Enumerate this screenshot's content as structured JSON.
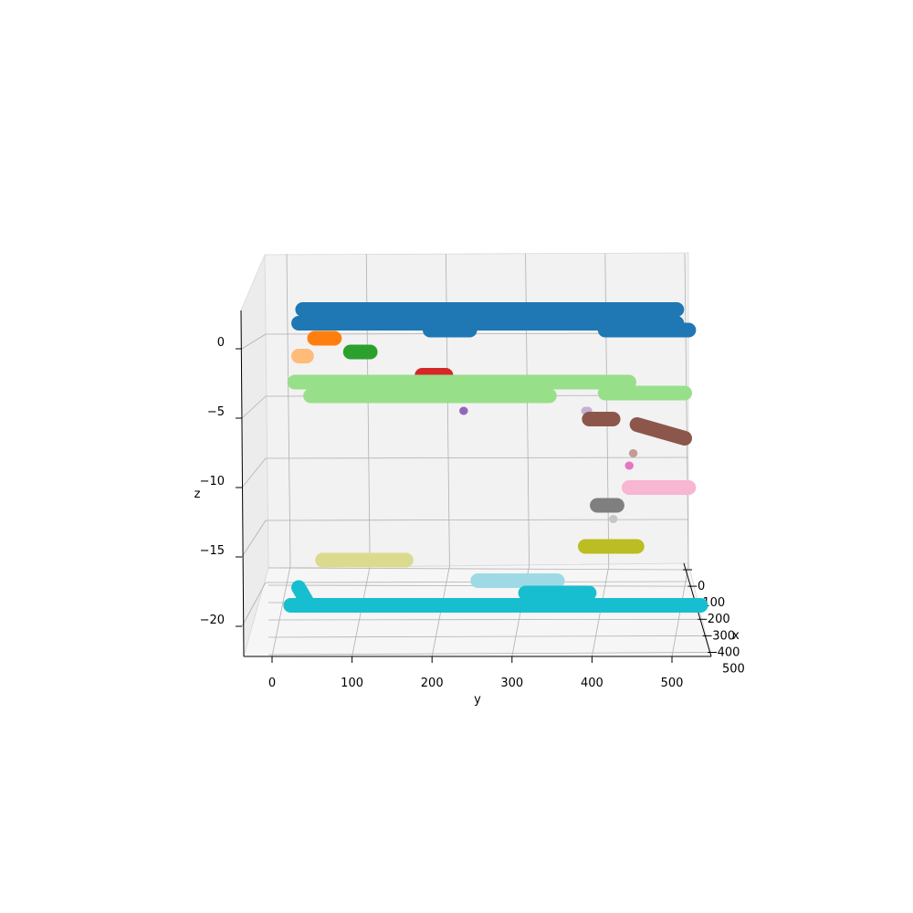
{
  "chart_data": {
    "type": "scatter3d",
    "title": "",
    "xlabel": "x",
    "ylabel": "y",
    "zlabel": "z",
    "x_ticks": [
      "0",
      "100",
      "200",
      "300",
      "400",
      "500"
    ],
    "y_ticks": [
      "0",
      "100",
      "200",
      "300",
      "400",
      "500"
    ],
    "z_ticks": [
      "0",
      "−5",
      "−10",
      "−15",
      "−20"
    ],
    "xlim": [
      0,
      500
    ],
    "ylim": [
      0,
      500
    ],
    "zlim": [
      -22,
      2
    ],
    "grid": true,
    "clusters": [
      {
        "color": "#1f77b4",
        "strokes": [
          [
            [
              20,
              1.8
            ],
            [
              490,
              1.8
            ]
          ],
          [
            [
              15,
              0.8
            ],
            [
              490,
              0.8
            ]
          ],
          [
            [
              180,
              0.3
            ],
            [
              230,
              0.3
            ]
          ],
          [
            [
              400,
              0.3
            ],
            [
              505,
              0.3
            ]
          ]
        ]
      },
      {
        "color": "#ff7f0e",
        "strokes": [
          [
            [
              35,
              -0.3
            ],
            [
              60,
              -0.3
            ]
          ]
        ]
      },
      {
        "color": "#ffbb78",
        "strokes": [
          [
            [
              15,
              -1.6
            ],
            [
              25,
              -1.6
            ]
          ]
        ]
      },
      {
        "color": "#2ca02c",
        "strokes": [
          [
            [
              80,
              -1.3
            ],
            [
              105,
              -1.3
            ]
          ]
        ]
      },
      {
        "color": "#d62728",
        "strokes": [
          [
            [
              170,
              -3.0
            ],
            [
              200,
              -3.0
            ]
          ]
        ]
      },
      {
        "color": "#98df8a",
        "strokes": [
          [
            [
              10,
              -3.5
            ],
            [
              430,
              -3.5
            ]
          ],
          [
            [
              30,
              -4.5
            ],
            [
              330,
              -4.5
            ]
          ],
          [
            [
              400,
              -4.3
            ],
            [
              500,
              -4.3
            ]
          ]
        ]
      },
      {
        "color": "#9467bd",
        "strokes": [
          [
            [
              222,
              -5.6
            ],
            [
              222,
              -5.6
            ]
          ]
        ]
      },
      {
        "color": "#c5b0d5",
        "strokes": [
          [
            [
              375,
              -5.6
            ],
            [
              378,
              -5.6
            ]
          ]
        ]
      },
      {
        "color": "#8c564b",
        "strokes": [
          [
            [
              380,
              -6.2
            ],
            [
              410,
              -6.2
            ]
          ],
          [
            [
              440,
              -6.6
            ],
            [
              500,
              -7.6
            ]
          ]
        ]
      },
      {
        "color": "#c49c94",
        "strokes": [
          [
            [
              435,
              -8.7
            ],
            [
              435,
              -8.7
            ]
          ]
        ]
      },
      {
        "color": "#e377c2",
        "strokes": [
          [
            [
              430,
              -9.6
            ],
            [
              430,
              -9.6
            ]
          ]
        ]
      },
      {
        "color": "#f7b6d2",
        "strokes": [
          [
            [
              430,
              -11.2
            ],
            [
              505,
              -11.2
            ]
          ]
        ]
      },
      {
        "color": "#7f7f7f",
        "strokes": [
          [
            [
              390,
              -12.5
            ],
            [
              415,
              -12.5
            ]
          ]
        ]
      },
      {
        "color": "#c7c7c7",
        "strokes": [
          [
            [
              410,
              -13.5
            ],
            [
              410,
              -13.5
            ]
          ]
        ]
      },
      {
        "color": "#bcbd22",
        "strokes": [
          [
            [
              375,
              -15.5
            ],
            [
              440,
              -15.5
            ]
          ]
        ]
      },
      {
        "color": "#dbdb8d",
        "strokes": [
          [
            [
              45,
              -16.5
            ],
            [
              150,
              -16.5
            ]
          ]
        ]
      },
      {
        "color": "#9edae5",
        "strokes": [
          [
            [
              240,
              -18.0
            ],
            [
              340,
              -18.0
            ]
          ]
        ]
      },
      {
        "color": "#17becf",
        "strokes": [
          [
            [
              15,
              -18.5
            ],
            [
              25,
              -19.5
            ]
          ],
          [
            [
              5,
              -19.8
            ],
            [
              520,
              -19.8
            ]
          ],
          [
            [
              300,
              -18.9
            ],
            [
              380,
              -18.9
            ]
          ]
        ]
      }
    ]
  }
}
